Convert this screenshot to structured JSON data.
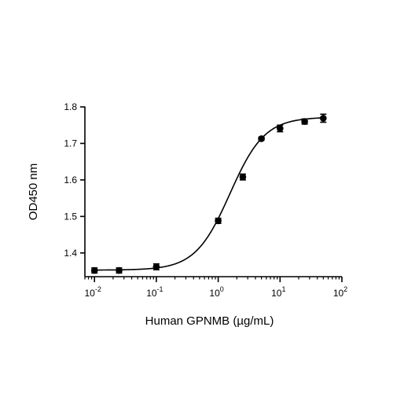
{
  "chart_data": {
    "type": "scatter",
    "title": "",
    "xlabel": "Human GPNMB (µg/mL)",
    "ylabel": "OD450 nm",
    "x_scale": "log",
    "xlim": [
      0.007,
      100
    ],
    "ylim": [
      1.335,
      1.8
    ],
    "x_ticks": [
      0.01,
      0.1,
      1,
      10,
      100
    ],
    "x_tick_labels": [
      {
        "base": "10",
        "exp": "-2"
      },
      {
        "base": "10",
        "exp": "-1"
      },
      {
        "base": "10",
        "exp": "0"
      },
      {
        "base": "10",
        "exp": "1"
      },
      {
        "base": "10",
        "exp": "2"
      }
    ],
    "y_ticks": [
      1.4,
      1.5,
      1.6,
      1.7,
      1.8
    ],
    "y_tick_labels": [
      "1.4",
      "1.5",
      "1.6",
      "1.7",
      "1.8"
    ],
    "grid": false,
    "legend": "none",
    "series": [
      {
        "marker": "circle",
        "color": "#000000",
        "x": [
          0.01,
          0.025,
          0.1,
          1,
          2.5,
          5,
          10,
          25,
          50
        ],
        "y": [
          1.352,
          1.352,
          1.362,
          1.488,
          1.608,
          1.713,
          1.741,
          1.76,
          1.769
        ],
        "error": [
          0.007,
          0.007,
          0.008,
          0.007,
          0.008,
          0.004,
          0.009,
          0.007,
          0.011
        ]
      }
    ],
    "fit_curve": {
      "model": "4PL",
      "bottom": 1.353,
      "top": 1.772,
      "ec50": 1.55,
      "hill": 1.55,
      "color": "#000000"
    }
  }
}
